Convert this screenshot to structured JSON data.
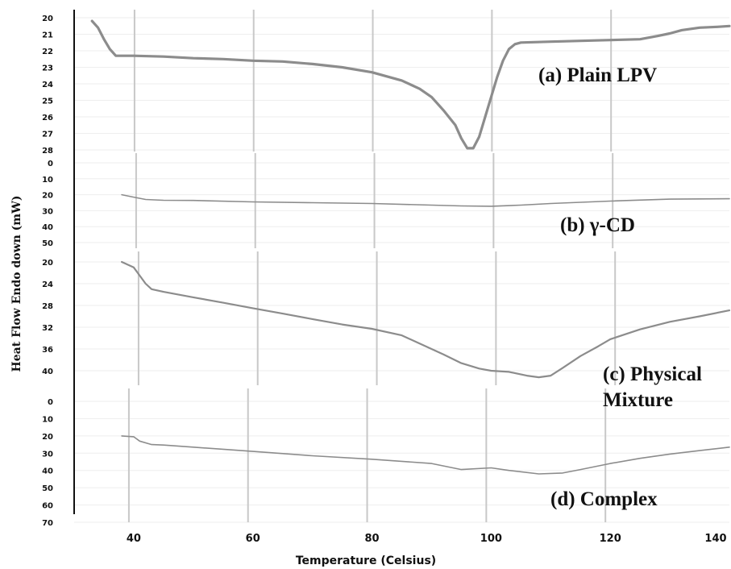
{
  "chart_data": {
    "type": "line",
    "xlabel": "Temperature (Celsius)",
    "ylabel": "Heat Flow Endo down (mW)",
    "xlim": [
      30,
      140
    ],
    "x_ticks": [
      "40",
      "60",
      "80",
      "100",
      "120",
      "140"
    ],
    "grid": true,
    "panels": [
      {
        "label": "(a) Plain LPV",
        "y_ticks": [
          "20",
          "21",
          "22",
          "23",
          "24",
          "25",
          "26",
          "27",
          "28"
        ],
        "ylim": [
          20,
          28
        ],
        "x": [
          33,
          34,
          35,
          36,
          37,
          38,
          40,
          45,
          50,
          55,
          60,
          65,
          70,
          75,
          80,
          85,
          88,
          90,
          92,
          94,
          95,
          96,
          97,
          98,
          99,
          100,
          101,
          102,
          103,
          104,
          105,
          110,
          115,
          120,
          125,
          128,
          130,
          132,
          135,
          138,
          140
        ],
        "values": [
          20.2,
          20.6,
          21.3,
          21.9,
          22.3,
          22.3,
          22.3,
          22.35,
          22.45,
          22.5,
          22.6,
          22.65,
          22.8,
          23.0,
          23.3,
          23.8,
          24.3,
          24.8,
          25.6,
          26.5,
          27.3,
          27.9,
          27.9,
          27.2,
          26.0,
          24.8,
          23.6,
          22.6,
          21.9,
          21.6,
          21.5,
          21.45,
          21.4,
          21.35,
          21.3,
          21.1,
          20.95,
          20.75,
          20.6,
          20.55,
          20.5
        ]
      },
      {
        "label": "(b) γ-CD",
        "y_ticks": [
          "0",
          "10",
          "20",
          "30",
          "40",
          "50"
        ],
        "ylim": [
          0,
          50
        ],
        "x": [
          38,
          40,
          42,
          45,
          50,
          60,
          70,
          80,
          90,
          95,
          100,
          105,
          110,
          120,
          130,
          140
        ],
        "values": [
          20,
          21.5,
          23,
          23.5,
          23.6,
          24.5,
          25,
          25.5,
          26.5,
          27,
          27.2,
          26.5,
          25.5,
          24,
          22.8,
          22.5
        ]
      },
      {
        "label": "(c) Physical Mixture",
        "y_ticks": [
          "20",
          "24",
          "28",
          "32",
          "36",
          "40"
        ],
        "ylim": [
          20,
          40
        ],
        "x": [
          38,
          40,
          41,
          42,
          43,
          45,
          50,
          55,
          60,
          65,
          70,
          75,
          80,
          85,
          88,
          92,
          95,
          98,
          100,
          103,
          106,
          108,
          110,
          112,
          115,
          118,
          120,
          125,
          130,
          135,
          140
        ],
        "values": [
          20,
          21,
          22.5,
          24,
          25,
          25.5,
          26.5,
          27.5,
          28.5,
          29.5,
          30.5,
          31.5,
          32.3,
          33.5,
          35,
          37,
          38.6,
          39.6,
          40,
          40.2,
          40.9,
          41.2,
          40.9,
          39.5,
          37.3,
          35.5,
          34.2,
          32.4,
          31,
          30,
          28.9
        ]
      },
      {
        "label": "(d) Complex",
        "y_ticks": [
          "0",
          "10",
          "20",
          "30",
          "40",
          "50",
          "60",
          "70"
        ],
        "ylim": [
          0,
          70
        ],
        "x": [
          38,
          40,
          41,
          43,
          45,
          50,
          60,
          70,
          80,
          90,
          95,
          100,
          103,
          108,
          112,
          115,
          120,
          125,
          130,
          135,
          140
        ],
        "values": [
          20,
          20.5,
          23,
          25,
          25.3,
          26.5,
          29,
          31.5,
          33.5,
          36,
          39.5,
          38.5,
          40,
          42,
          41.5,
          39.5,
          36,
          33,
          30.5,
          28.5,
          26.5
        ]
      }
    ]
  }
}
